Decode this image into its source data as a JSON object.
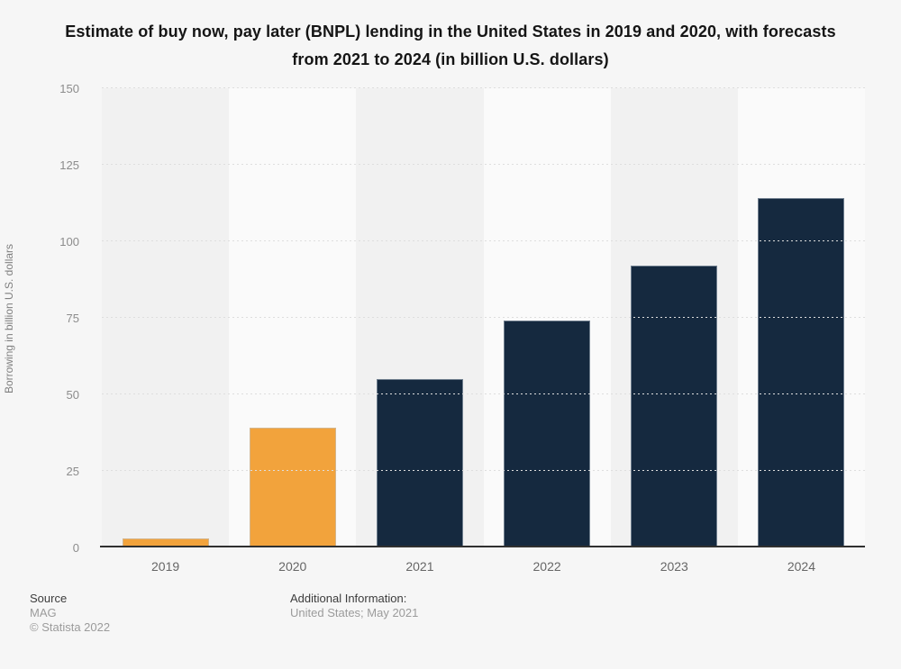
{
  "title": "Estimate of buy now, pay later (BNPL) lending in the United States in 2019 and 2020, with forecasts from 2021 to 2024 (in billion U.S. dollars)",
  "chart_data": {
    "type": "bar",
    "categories": [
      "2019",
      "2020",
      "2021",
      "2022",
      "2023",
      "2024"
    ],
    "values": [
      3,
      39,
      55,
      74,
      92,
      114
    ],
    "bar_colors": [
      "#f2a33c",
      "#f2a33c",
      "#15293f",
      "#15293f",
      "#15293f",
      "#15293f"
    ],
    "series_note": "2019-2020 estimates shown in orange, 2021-2024 forecasts shown in dark navy",
    "title": "Estimate of buy now, pay later (BNPL) lending in the United States in 2019 and 2020, with forecasts from 2021 to 2024 (in billion U.S. dollars)",
    "xlabel": "",
    "ylabel": "Borrowing in billion U.S. dollars",
    "ylim": [
      0,
      150
    ],
    "yticks": [
      0,
      25,
      50,
      75,
      100,
      125,
      150
    ],
    "grid": "horizontal dotted gridlines on",
    "legend": "none",
    "plot_background": "alternating vertical column stripes"
  },
  "footer": {
    "source_label": "Source",
    "source_value": "MAG",
    "copyright": "© Statista 2022",
    "additional_label": "Additional Information:",
    "additional_value": "United States; May 2021"
  },
  "colors": {
    "estimate_bar": "#f2a33c",
    "forecast_bar": "#15293f",
    "page_background": "#f6f6f6",
    "stripe_dark": "#f1f1f1",
    "stripe_light": "#fafafa",
    "gridline": "#dedede",
    "axis_line": "#303030",
    "y_tick_label": "#8c8c8c",
    "x_tick_label": "#666666",
    "title_text": "#151515"
  }
}
